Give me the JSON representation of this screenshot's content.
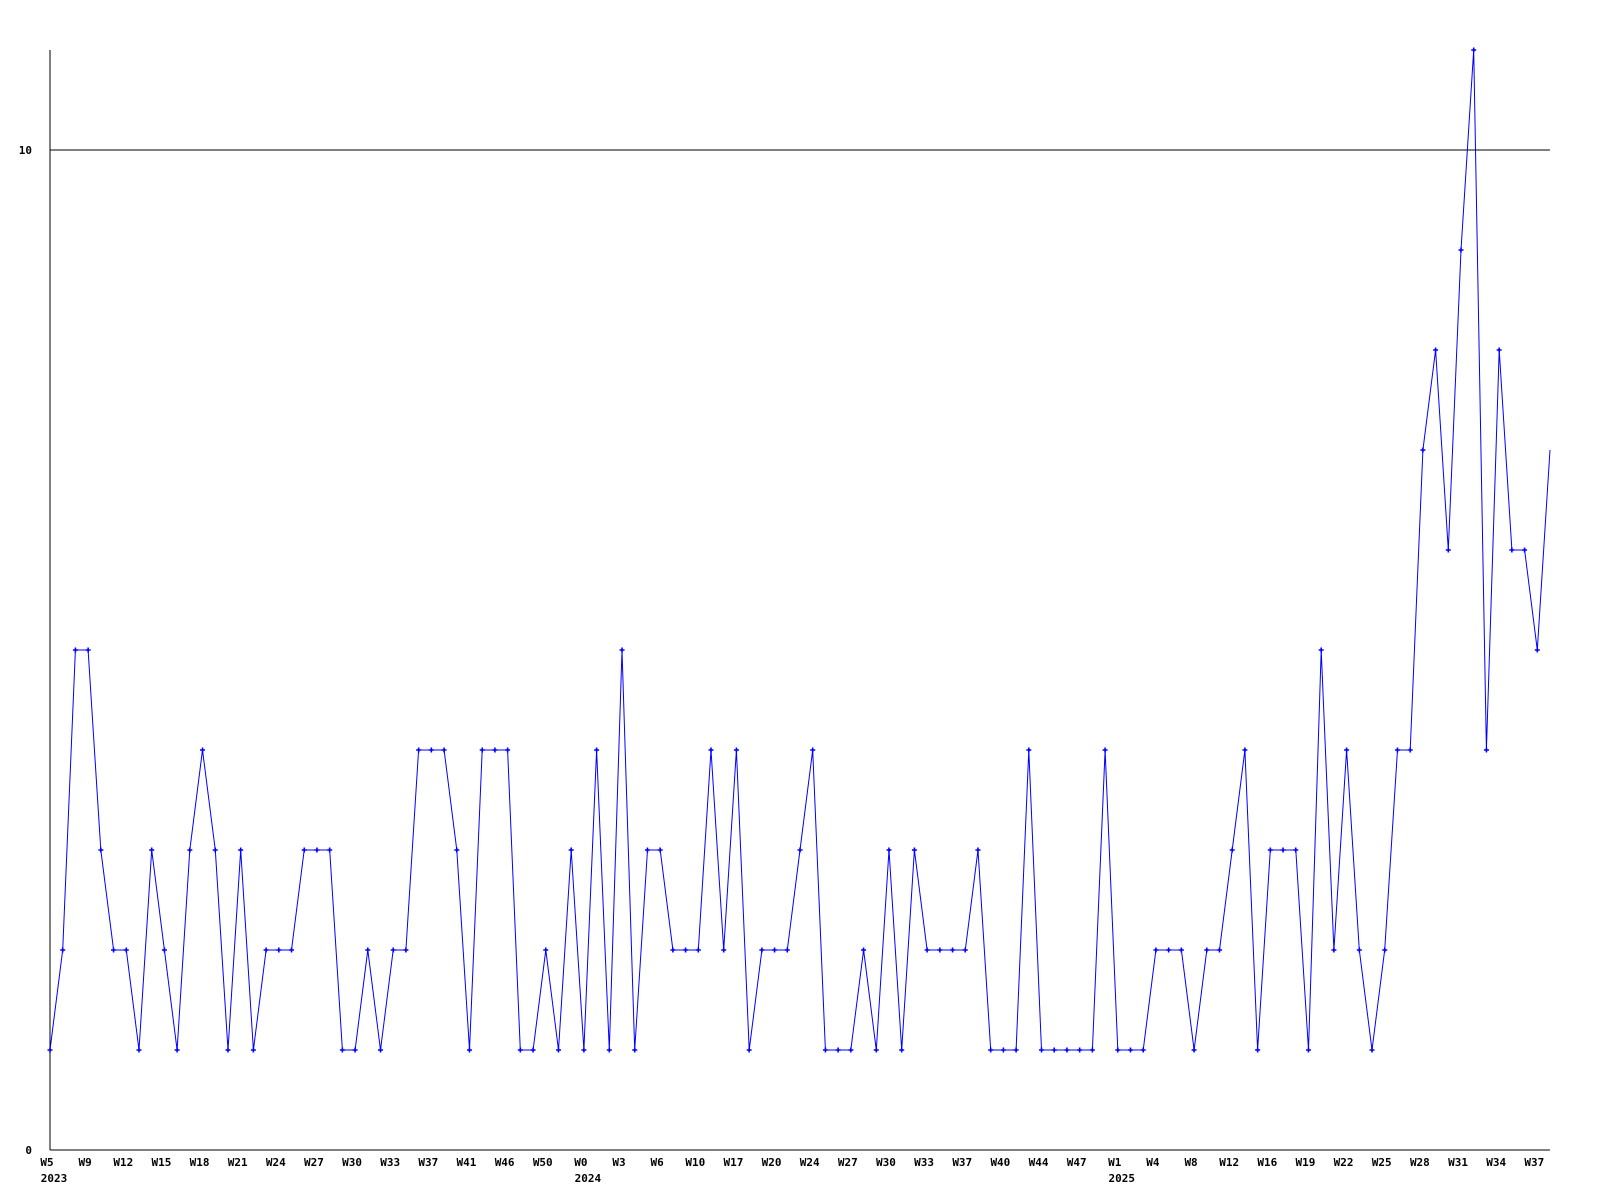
{
  "chart_data": {
    "type": "line",
    "title": "",
    "xlabel": "",
    "ylabel": "",
    "ylim": [
      0,
      11
    ],
    "yticks": [
      0,
      10
    ],
    "ytick_labels": [
      "0",
      "10"
    ],
    "grid": "horizontal line at 10",
    "line_color": "#0000ff",
    "axis_color": "#000000",
    "xtick_labels": [
      "W5",
      "W9",
      "W12",
      "W15",
      "W18",
      "W21",
      "W24",
      "W27",
      "W30",
      "W33",
      "W37",
      "W41",
      "W46",
      "W50",
      "W0",
      "W3",
      "W6",
      "W10",
      "W17",
      "W20",
      "W24",
      "W27",
      "W30",
      "W33",
      "W37",
      "W40",
      "W44",
      "W47",
      "W1",
      "W4",
      "W8",
      "W12",
      "W16",
      "W19",
      "W22",
      "W25",
      "W28",
      "W31",
      "W34",
      "W37"
    ],
    "xtick_every_n_points": 3,
    "year_labels": [
      {
        "label": "2023",
        "tick_index": 0
      },
      {
        "label": "2024",
        "tick_index": 14
      },
      {
        "label": "2025",
        "tick_index": 28
      }
    ],
    "series": [
      {
        "values": [
          1,
          2,
          5,
          5,
          3,
          2,
          2,
          1,
          3,
          2,
          1,
          3,
          4,
          3,
          1,
          3,
          1,
          2,
          2,
          2,
          3,
          3,
          3,
          1,
          1,
          2,
          1,
          2,
          2,
          4,
          4,
          4,
          3,
          1,
          4,
          4,
          4,
          1,
          1,
          2,
          1,
          3,
          1,
          4,
          1,
          5,
          1,
          3,
          3,
          2,
          2,
          2,
          4,
          2,
          4,
          1,
          2,
          2,
          2,
          3,
          4,
          1,
          1,
          1,
          2,
          1,
          3,
          1,
          3,
          2,
          2,
          2,
          2,
          3,
          1,
          1,
          1,
          4,
          1,
          1,
          1,
          1,
          1,
          4,
          1,
          1,
          1,
          2,
          2,
          2,
          1,
          2,
          2,
          3,
          4,
          1,
          3,
          3,
          3,
          1,
          5,
          2,
          4,
          2,
          1,
          2,
          4,
          4,
          7,
          8,
          6,
          9,
          11,
          4,
          8,
          6,
          6,
          5,
          7
        ]
      }
    ]
  }
}
